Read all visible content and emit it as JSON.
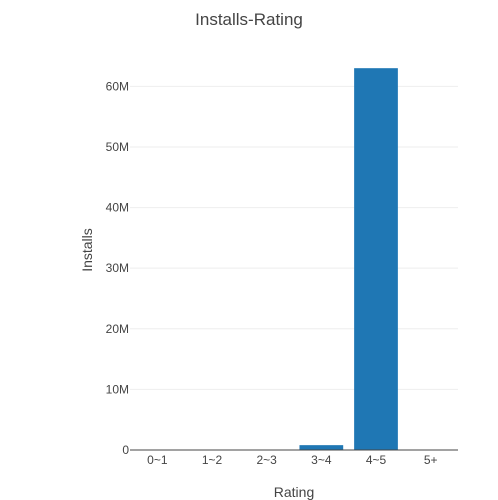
{
  "chart_data": {
    "type": "bar",
    "title": "Installs-Rating",
    "xlabel": "Rating",
    "ylabel": "Installs",
    "categories": [
      "0~1",
      "1~2",
      "2~3",
      "3~4",
      "4~5",
      "5+"
    ],
    "values": [
      0,
      0,
      0,
      800000,
      63000000,
      0
    ],
    "ylim": [
      0,
      66000000
    ],
    "yticks": [
      {
        "value": 0,
        "label": "0"
      },
      {
        "value": 10000000,
        "label": "10M"
      },
      {
        "value": 20000000,
        "label": "20M"
      },
      {
        "value": 30000000,
        "label": "30M"
      },
      {
        "value": 40000000,
        "label": "40M"
      },
      {
        "value": 50000000,
        "label": "50M"
      },
      {
        "value": 60000000,
        "label": "60M"
      }
    ],
    "grid": true,
    "colors": {
      "bar": "#1f77b4",
      "grid": "#eeeeee",
      "text": "#444444"
    }
  }
}
